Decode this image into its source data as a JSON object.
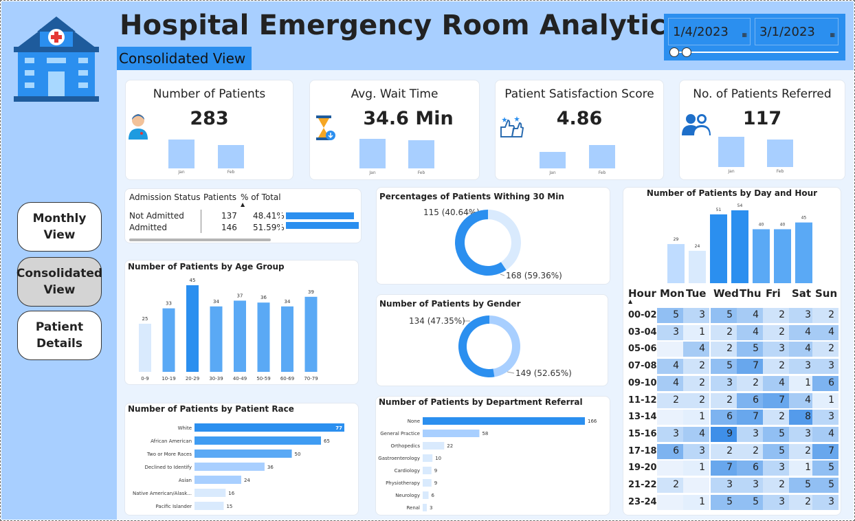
{
  "header": {
    "title": "Hospital Emergency Room Analytics",
    "subtitle": "Consolidated View",
    "date_start": "1/4/2023",
    "date_end": "3/1/2023"
  },
  "nav": {
    "monthly": "Monthly View",
    "consolidated": "Consolidated View",
    "patient": "Patient Details"
  },
  "kpis": [
    {
      "title": "Number of Patients",
      "value": "283",
      "icon": "patient-icon",
      "bars": [
        {
          "label": "Jan",
          "value": 42
        },
        {
          "label": "Feb",
          "value": 34
        }
      ]
    },
    {
      "title": "Avg. Wait Time",
      "value": "34.6 Min",
      "icon": "hourglass-icon",
      "bars": [
        {
          "label": "Jan",
          "value": 43
        },
        {
          "label": "Feb",
          "value": 41
        }
      ]
    },
    {
      "title": "Patient Satisfaction Score",
      "value": "4.86",
      "icon": "satisfaction-icon",
      "bars": [
        {
          "label": "Jan",
          "value": 24
        },
        {
          "label": "Feb",
          "value": 34
        }
      ]
    },
    {
      "title": "No. of Patients Referred",
      "value": "117",
      "icon": "referral-icon",
      "bars": [
        {
          "label": "Jan",
          "value": 44
        },
        {
          "label": "Feb",
          "value": 40
        }
      ]
    }
  ],
  "admission_table": {
    "headers": [
      "Admission Status",
      "Patients",
      "% of Total"
    ],
    "rows": [
      {
        "status": "Not Admitted",
        "patients": "137",
        "pct": "48.41%",
        "pct_value": 48.41
      },
      {
        "status": "Admitted",
        "patients": "146",
        "pct": "51.59%",
        "pct_value": 51.59
      }
    ]
  },
  "colors": {
    "accent": "#2b8fef",
    "light": "#a8cfff",
    "lightest": "#d9eafd",
    "sidebar": "#a8cfff"
  },
  "chart_data": [
    {
      "type": "pie",
      "title": "Percentages of Patients Withing 30 Min",
      "slices": [
        {
          "label": "115 (40.64%)",
          "value": 115
        },
        {
          "label": "168 (59.36%)",
          "value": 168
        }
      ]
    },
    {
      "type": "pie",
      "title": "Number of Patients by Gender",
      "slices": [
        {
          "label": "134 (47.35%)",
          "value": 134
        },
        {
          "label": "149 (52.65%)",
          "value": 149
        }
      ]
    },
    {
      "type": "bar",
      "title": "Number of Patients by Age Group",
      "categories": [
        "0-9",
        "10-19",
        "20-29",
        "30-39",
        "40-49",
        "50-59",
        "60-69",
        "70-79"
      ],
      "values": [
        25,
        33,
        45,
        34,
        37,
        36,
        34,
        39
      ]
    },
    {
      "type": "bar",
      "orientation": "horizontal",
      "title": "Number of Patients by Patient Race",
      "categories": [
        "White",
        "African American",
        "Two or More Races",
        "Declined to Identify",
        "Asian",
        "Native American/Alask...",
        "Pacific Islander"
      ],
      "values": [
        77,
        65,
        50,
        36,
        24,
        16,
        15
      ]
    },
    {
      "type": "bar",
      "orientation": "horizontal",
      "title": "Number of Patients by Department Referral",
      "categories": [
        "None",
        "General Practice",
        "Orthopedics",
        "Gastroenterology",
        "Cardiology",
        "Physiotherapy",
        "Neurology",
        "Renal"
      ],
      "values": [
        166,
        58,
        22,
        10,
        9,
        9,
        6,
        3
      ]
    },
    {
      "type": "bar",
      "title": "Number of Patients by Day and Hour",
      "categories": [
        "Mon",
        "Tue",
        "Wed",
        "Thu",
        "Fri",
        "Sat",
        "Sun"
      ],
      "values": [
        29,
        24,
        51,
        54,
        40,
        40,
        45
      ]
    },
    {
      "type": "heatmap",
      "row_header": "Hour",
      "columns": [
        "Mon",
        "Tue",
        "Wed",
        "Thu",
        "Fri",
        "Sat",
        "Sun"
      ],
      "rows": [
        {
          "hour": "00-02",
          "values": [
            5,
            3,
            5,
            4,
            2,
            3,
            2
          ]
        },
        {
          "hour": "03-04",
          "values": [
            3,
            1,
            2,
            4,
            2,
            4,
            4
          ]
        },
        {
          "hour": "05-06",
          "values": [
            null,
            4,
            2,
            5,
            3,
            4,
            2
          ]
        },
        {
          "hour": "07-08",
          "values": [
            4,
            2,
            5,
            7,
            2,
            3,
            3
          ]
        },
        {
          "hour": "09-10",
          "values": [
            4,
            2,
            3,
            2,
            4,
            1,
            6
          ]
        },
        {
          "hour": "11-12",
          "values": [
            2,
            2,
            2,
            6,
            7,
            4,
            1
          ]
        },
        {
          "hour": "13-14",
          "values": [
            null,
            1,
            6,
            7,
            2,
            8,
            3
          ]
        },
        {
          "hour": "15-16",
          "values": [
            3,
            4,
            9,
            3,
            5,
            3,
            4
          ]
        },
        {
          "hour": "17-18",
          "values": [
            6,
            3,
            2,
            2,
            5,
            2,
            7
          ]
        },
        {
          "hour": "19-20",
          "values": [
            null,
            1,
            7,
            6,
            3,
            1,
            5
          ]
        },
        {
          "hour": "21-22",
          "values": [
            2,
            null,
            3,
            3,
            2,
            5,
            5
          ]
        },
        {
          "hour": "23-24",
          "values": [
            null,
            1,
            5,
            5,
            3,
            2,
            3
          ]
        }
      ]
    }
  ]
}
